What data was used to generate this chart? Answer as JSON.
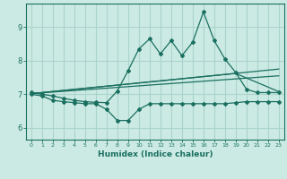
{
  "xlabel": "Humidex (Indice chaleur)",
  "bg_color": "#cceae4",
  "grid_color": "#aad4cc",
  "line_color": "#1a7060",
  "xlim": [
    -0.5,
    23.5
  ],
  "ylim": [
    5.65,
    9.7
  ],
  "xticks": [
    0,
    1,
    2,
    3,
    4,
    5,
    6,
    7,
    8,
    9,
    10,
    11,
    12,
    13,
    14,
    15,
    16,
    17,
    18,
    19,
    20,
    21,
    22,
    23
  ],
  "yticks": [
    6,
    7,
    8,
    9
  ],
  "upper_line_x": [
    0,
    1,
    2,
    3,
    4,
    5,
    6,
    7,
    8,
    9,
    10,
    11,
    12,
    13,
    14,
    15,
    16,
    17,
    18,
    19,
    20,
    21,
    22,
    23
  ],
  "upper_line_y": [
    7.05,
    7.0,
    6.95,
    6.88,
    6.82,
    6.78,
    6.76,
    6.75,
    7.1,
    7.7,
    8.35,
    8.65,
    8.2,
    8.6,
    8.15,
    8.55,
    9.45,
    8.6,
    8.05,
    7.65,
    7.15,
    7.05,
    7.05,
    7.05
  ],
  "lower_line_x": [
    0,
    1,
    2,
    3,
    4,
    5,
    6,
    7,
    8,
    9,
    10,
    11,
    12,
    13,
    14,
    15,
    16,
    17,
    18,
    19,
    20,
    21,
    22,
    23
  ],
  "lower_line_y": [
    7.0,
    6.95,
    6.82,
    6.78,
    6.75,
    6.72,
    6.72,
    6.55,
    6.22,
    6.22,
    6.55,
    6.72,
    6.72,
    6.72,
    6.72,
    6.72,
    6.72,
    6.72,
    6.72,
    6.75,
    6.78,
    6.78,
    6.78,
    6.78
  ],
  "trend1_x": [
    0,
    23
  ],
  "trend1_y": [
    7.02,
    7.55
  ],
  "trend2_x": [
    0,
    23
  ],
  "trend2_y": [
    7.02,
    7.75
  ],
  "trend3_x": [
    0,
    19,
    23
  ],
  "trend3_y": [
    7.02,
    7.62,
    7.08
  ]
}
